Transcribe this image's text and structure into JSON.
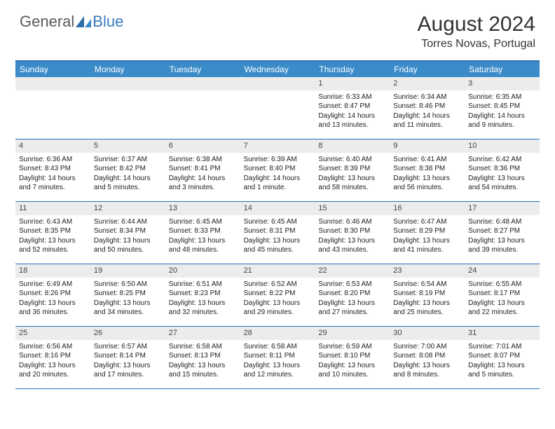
{
  "logo": {
    "part1": "General",
    "part2": "Blue"
  },
  "title": "August 2024",
  "location": "Torres Novas, Portugal",
  "colors": {
    "header_bg": "#3b8bc9",
    "border": "#2a6fb5",
    "daynum_bg": "#ececec",
    "text": "#333333",
    "logo_gray": "#5b5b5b",
    "logo_blue": "#3b7bbf"
  },
  "weekdays": [
    "Sunday",
    "Monday",
    "Tuesday",
    "Wednesday",
    "Thursday",
    "Friday",
    "Saturday"
  ],
  "weeks": [
    [
      null,
      null,
      null,
      null,
      {
        "n": "1",
        "sr": "Sunrise: 6:33 AM",
        "ss": "Sunset: 8:47 PM",
        "dl1": "Daylight: 14 hours",
        "dl2": "and 13 minutes."
      },
      {
        "n": "2",
        "sr": "Sunrise: 6:34 AM",
        "ss": "Sunset: 8:46 PM",
        "dl1": "Daylight: 14 hours",
        "dl2": "and 11 minutes."
      },
      {
        "n": "3",
        "sr": "Sunrise: 6:35 AM",
        "ss": "Sunset: 8:45 PM",
        "dl1": "Daylight: 14 hours",
        "dl2": "and 9 minutes."
      }
    ],
    [
      {
        "n": "4",
        "sr": "Sunrise: 6:36 AM",
        "ss": "Sunset: 8:43 PM",
        "dl1": "Daylight: 14 hours",
        "dl2": "and 7 minutes."
      },
      {
        "n": "5",
        "sr": "Sunrise: 6:37 AM",
        "ss": "Sunset: 8:42 PM",
        "dl1": "Daylight: 14 hours",
        "dl2": "and 5 minutes."
      },
      {
        "n": "6",
        "sr": "Sunrise: 6:38 AM",
        "ss": "Sunset: 8:41 PM",
        "dl1": "Daylight: 14 hours",
        "dl2": "and 3 minutes."
      },
      {
        "n": "7",
        "sr": "Sunrise: 6:39 AM",
        "ss": "Sunset: 8:40 PM",
        "dl1": "Daylight: 14 hours",
        "dl2": "and 1 minute."
      },
      {
        "n": "8",
        "sr": "Sunrise: 6:40 AM",
        "ss": "Sunset: 8:39 PM",
        "dl1": "Daylight: 13 hours",
        "dl2": "and 58 minutes."
      },
      {
        "n": "9",
        "sr": "Sunrise: 6:41 AM",
        "ss": "Sunset: 8:38 PM",
        "dl1": "Daylight: 13 hours",
        "dl2": "and 56 minutes."
      },
      {
        "n": "10",
        "sr": "Sunrise: 6:42 AM",
        "ss": "Sunset: 8:36 PM",
        "dl1": "Daylight: 13 hours",
        "dl2": "and 54 minutes."
      }
    ],
    [
      {
        "n": "11",
        "sr": "Sunrise: 6:43 AM",
        "ss": "Sunset: 8:35 PM",
        "dl1": "Daylight: 13 hours",
        "dl2": "and 52 minutes."
      },
      {
        "n": "12",
        "sr": "Sunrise: 6:44 AM",
        "ss": "Sunset: 8:34 PM",
        "dl1": "Daylight: 13 hours",
        "dl2": "and 50 minutes."
      },
      {
        "n": "13",
        "sr": "Sunrise: 6:45 AM",
        "ss": "Sunset: 8:33 PM",
        "dl1": "Daylight: 13 hours",
        "dl2": "and 48 minutes."
      },
      {
        "n": "14",
        "sr": "Sunrise: 6:45 AM",
        "ss": "Sunset: 8:31 PM",
        "dl1": "Daylight: 13 hours",
        "dl2": "and 45 minutes."
      },
      {
        "n": "15",
        "sr": "Sunrise: 6:46 AM",
        "ss": "Sunset: 8:30 PM",
        "dl1": "Daylight: 13 hours",
        "dl2": "and 43 minutes."
      },
      {
        "n": "16",
        "sr": "Sunrise: 6:47 AM",
        "ss": "Sunset: 8:29 PM",
        "dl1": "Daylight: 13 hours",
        "dl2": "and 41 minutes."
      },
      {
        "n": "17",
        "sr": "Sunrise: 6:48 AM",
        "ss": "Sunset: 8:27 PM",
        "dl1": "Daylight: 13 hours",
        "dl2": "and 39 minutes."
      }
    ],
    [
      {
        "n": "18",
        "sr": "Sunrise: 6:49 AM",
        "ss": "Sunset: 8:26 PM",
        "dl1": "Daylight: 13 hours",
        "dl2": "and 36 minutes."
      },
      {
        "n": "19",
        "sr": "Sunrise: 6:50 AM",
        "ss": "Sunset: 8:25 PM",
        "dl1": "Daylight: 13 hours",
        "dl2": "and 34 minutes."
      },
      {
        "n": "20",
        "sr": "Sunrise: 6:51 AM",
        "ss": "Sunset: 8:23 PM",
        "dl1": "Daylight: 13 hours",
        "dl2": "and 32 minutes."
      },
      {
        "n": "21",
        "sr": "Sunrise: 6:52 AM",
        "ss": "Sunset: 8:22 PM",
        "dl1": "Daylight: 13 hours",
        "dl2": "and 29 minutes."
      },
      {
        "n": "22",
        "sr": "Sunrise: 6:53 AM",
        "ss": "Sunset: 8:20 PM",
        "dl1": "Daylight: 13 hours",
        "dl2": "and 27 minutes."
      },
      {
        "n": "23",
        "sr": "Sunrise: 6:54 AM",
        "ss": "Sunset: 8:19 PM",
        "dl1": "Daylight: 13 hours",
        "dl2": "and 25 minutes."
      },
      {
        "n": "24",
        "sr": "Sunrise: 6:55 AM",
        "ss": "Sunset: 8:17 PM",
        "dl1": "Daylight: 13 hours",
        "dl2": "and 22 minutes."
      }
    ],
    [
      {
        "n": "25",
        "sr": "Sunrise: 6:56 AM",
        "ss": "Sunset: 8:16 PM",
        "dl1": "Daylight: 13 hours",
        "dl2": "and 20 minutes."
      },
      {
        "n": "26",
        "sr": "Sunrise: 6:57 AM",
        "ss": "Sunset: 8:14 PM",
        "dl1": "Daylight: 13 hours",
        "dl2": "and 17 minutes."
      },
      {
        "n": "27",
        "sr": "Sunrise: 6:58 AM",
        "ss": "Sunset: 8:13 PM",
        "dl1": "Daylight: 13 hours",
        "dl2": "and 15 minutes."
      },
      {
        "n": "28",
        "sr": "Sunrise: 6:58 AM",
        "ss": "Sunset: 8:11 PM",
        "dl1": "Daylight: 13 hours",
        "dl2": "and 12 minutes."
      },
      {
        "n": "29",
        "sr": "Sunrise: 6:59 AM",
        "ss": "Sunset: 8:10 PM",
        "dl1": "Daylight: 13 hours",
        "dl2": "and 10 minutes."
      },
      {
        "n": "30",
        "sr": "Sunrise: 7:00 AM",
        "ss": "Sunset: 8:08 PM",
        "dl1": "Daylight: 13 hours",
        "dl2": "and 8 minutes."
      },
      {
        "n": "31",
        "sr": "Sunrise: 7:01 AM",
        "ss": "Sunset: 8:07 PM",
        "dl1": "Daylight: 13 hours",
        "dl2": "and 5 minutes."
      }
    ]
  ]
}
